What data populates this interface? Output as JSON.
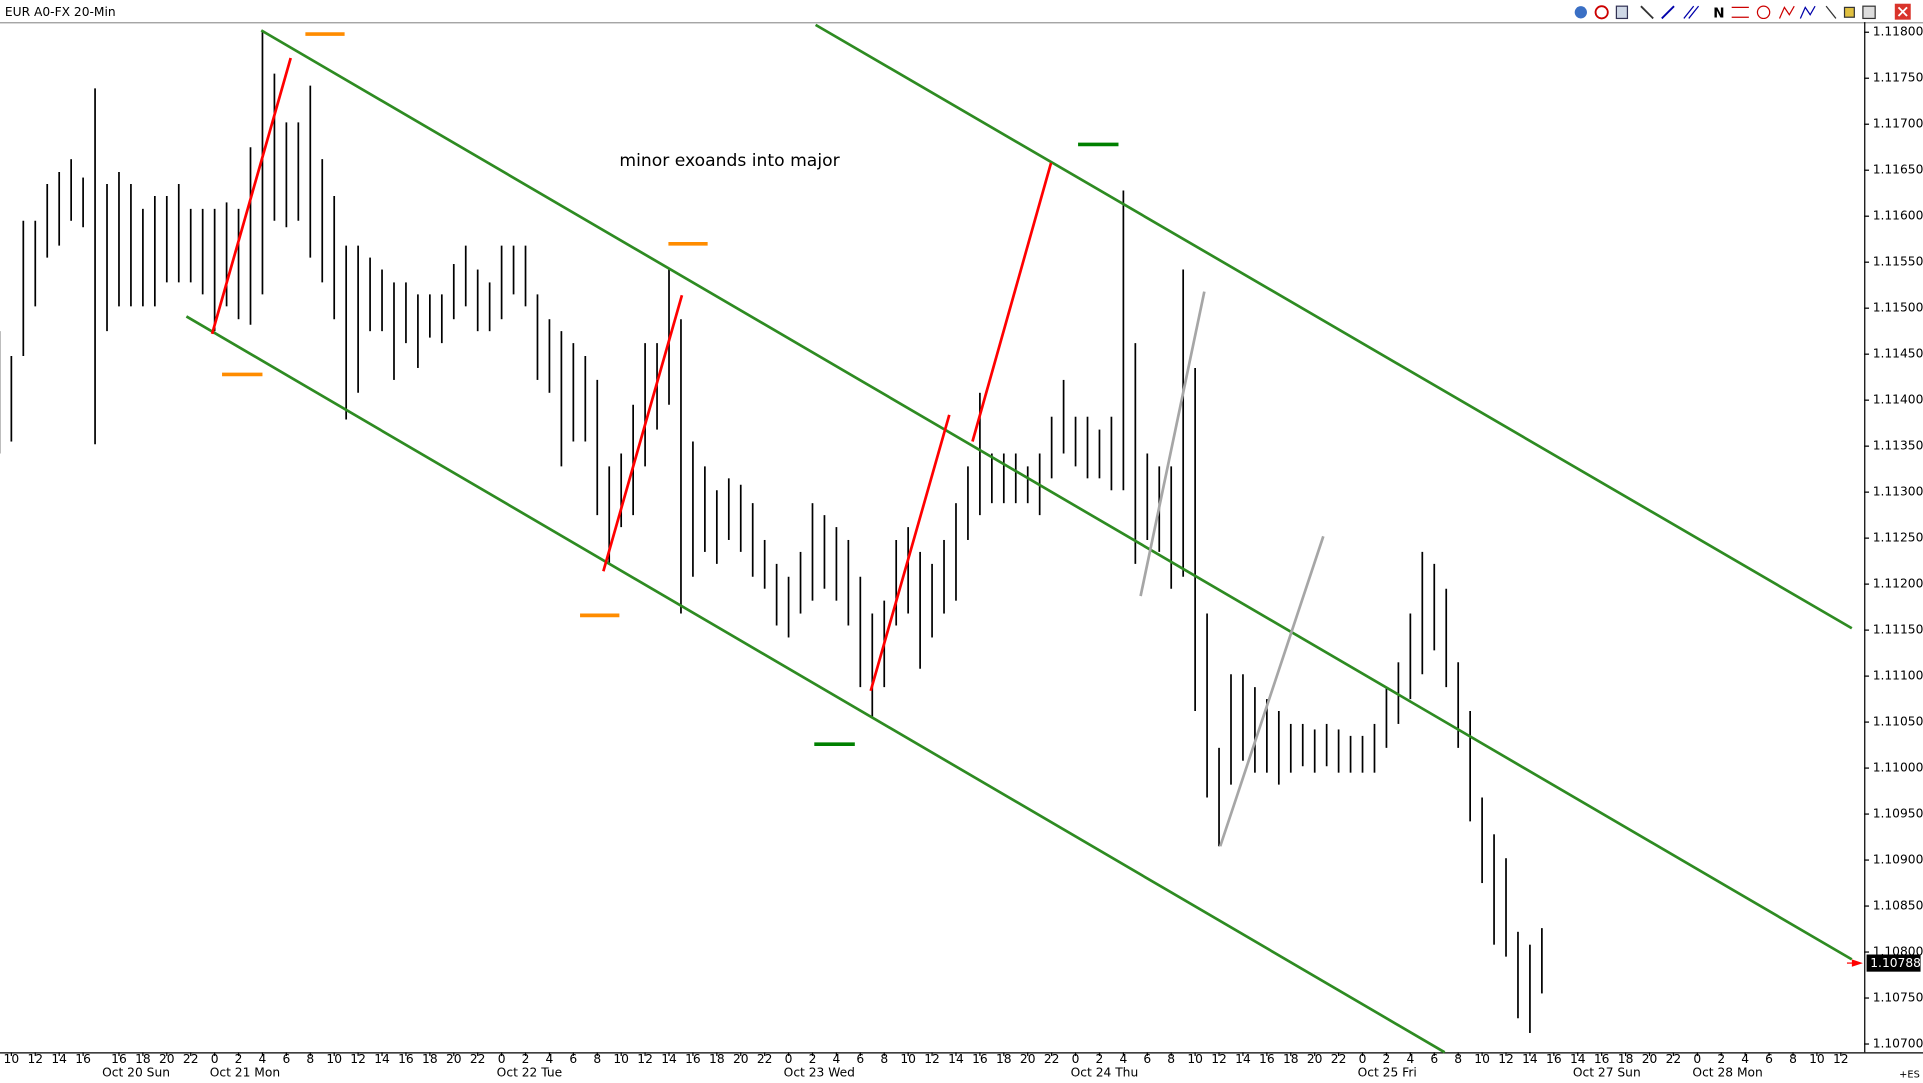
{
  "chart_data": {
    "type": "rangebar",
    "title": "EUR A0-FX 20-Min",
    "annotation": {
      "text": "minor exoands into major",
      "x": 57.85,
      "y": 1.1166
    },
    "color": "#000000",
    "xlim": [
      6.05,
      161.95
    ],
    "ylim": [
      1.10691,
      1.11811
    ],
    "x": [
      6,
      7,
      8,
      9,
      10,
      11,
      12,
      13,
      14,
      15,
      16,
      17,
      18,
      19,
      20,
      21,
      22,
      23,
      24,
      25,
      26,
      27,
      28,
      29,
      30,
      31,
      32,
      33,
      34,
      35,
      36,
      37,
      38,
      39,
      40,
      41,
      42,
      43,
      44,
      45,
      46,
      47,
      48,
      49,
      50,
      51,
      52,
      53,
      54,
      55,
      56,
      57,
      58,
      59,
      60,
      61,
      62,
      63,
      64,
      65,
      66,
      67,
      68,
      69,
      70,
      71,
      72,
      73,
      74,
      75,
      76,
      77,
      78,
      79,
      80,
      81,
      82,
      83,
      84,
      85,
      86,
      87,
      88,
      89,
      90,
      91,
      92,
      93,
      94,
      95,
      96,
      97,
      98,
      99,
      100,
      101,
      102,
      103,
      104,
      105,
      106,
      107,
      108,
      109,
      110,
      111,
      112,
      113,
      114,
      115,
      116,
      117,
      118,
      119,
      120,
      121,
      122,
      123,
      124,
      125,
      126,
      127,
      128,
      129,
      130,
      131,
      132,
      133,
      134,
      135
    ],
    "high": [
      1.11475,
      1.11448,
      1.11595,
      1.11595,
      1.11635,
      1.11648,
      1.11662,
      1.11642,
      1.11739,
      1.11635,
      1.11648,
      1.11635,
      1.11608,
      1.11622,
      1.11622,
      1.11635,
      1.11608,
      1.11608,
      1.11608,
      1.11615,
      1.11608,
      1.11675,
      1.11802,
      1.11755,
      1.11702,
      1.11702,
      1.11742,
      1.11662,
      1.11622,
      1.11568,
      1.11568,
      1.11555,
      1.11542,
      1.11528,
      1.11528,
      1.11515,
      1.11515,
      1.11515,
      1.11548,
      1.11568,
      1.11542,
      1.11528,
      1.11568,
      1.11568,
      1.11568,
      1.11515,
      1.11488,
      1.11475,
      1.11462,
      1.11448,
      1.11422,
      1.11328,
      1.11342,
      1.11395,
      1.11462,
      1.11462,
      1.11542,
      1.11488,
      1.11355,
      1.11328,
      1.11302,
      1.11315,
      1.11308,
      1.11288,
      1.11248,
      1.11222,
      1.11208,
      1.11235,
      1.11288,
      1.11275,
      1.11262,
      1.11248,
      1.11208,
      1.11168,
      1.11182,
      1.11248,
      1.11262,
      1.11235,
      1.11222,
      1.11248,
      1.11288,
      1.11328,
      1.11408,
      1.11342,
      1.11342,
      1.11342,
      1.11328,
      1.11342,
      1.11382,
      1.11422,
      1.11382,
      1.11382,
      1.11368,
      1.11382,
      1.11628,
      1.11462,
      1.11342,
      1.11328,
      1.11328,
      1.11542,
      1.11435,
      1.11168,
      1.11022,
      1.11102,
      1.11102,
      1.11088,
      1.11075,
      1.11062,
      1.11048,
      1.11048,
      1.11042,
      1.11048,
      1.11042,
      1.11035,
      1.11035,
      1.11048,
      1.11088,
      1.11115,
      1.11168,
      1.11235,
      1.11222,
      1.11195,
      1.11115,
      1.11062,
      1.10968,
      1.10928,
      1.10902,
      1.10822,
      1.10808,
      1.10826
    ],
    "low": [
      1.11342,
      1.11355,
      1.11448,
      1.11502,
      1.11555,
      1.11568,
      1.11595,
      1.11588,
      1.11352,
      1.11475,
      1.11502,
      1.11502,
      1.11502,
      1.11502,
      1.11528,
      1.11528,
      1.11528,
      1.11515,
      1.11475,
      1.11502,
      1.11488,
      1.11482,
      1.11515,
      1.11595,
      1.11588,
      1.11595,
      1.11555,
      1.11528,
      1.11488,
      1.11379,
      1.11408,
      1.11475,
      1.11475,
      1.11422,
      1.11462,
      1.11435,
      1.11468,
      1.11462,
      1.11488,
      1.11502,
      1.11475,
      1.11475,
      1.11488,
      1.11515,
      1.11502,
      1.11422,
      1.11408,
      1.11328,
      1.11355,
      1.11355,
      1.11275,
      1.11222,
      1.11262,
      1.11275,
      1.11328,
      1.11368,
      1.11395,
      1.11168,
      1.11208,
      1.11235,
      1.11222,
      1.11248,
      1.11235,
      1.11208,
      1.11195,
      1.11155,
      1.11142,
      1.11168,
      1.11182,
      1.11195,
      1.11182,
      1.11155,
      1.11088,
      1.11055,
      1.11088,
      1.11155,
      1.11168,
      1.11108,
      1.11142,
      1.11168,
      1.11182,
      1.11248,
      1.11275,
      1.11288,
      1.11288,
      1.11288,
      1.11288,
      1.11275,
      1.11315,
      1.11342,
      1.11328,
      1.11315,
      1.11315,
      1.11302,
      1.11302,
      1.11222,
      1.11248,
      1.11235,
      1.11195,
      1.11208,
      1.11062,
      1.10968,
      1.10915,
      1.10982,
      1.11008,
      1.10995,
      1.10995,
      1.10982,
      1.10995,
      1.11002,
      1.10995,
      1.11002,
      1.10995,
      1.10995,
      1.10995,
      1.10995,
      1.11022,
      1.11048,
      1.11075,
      1.11102,
      1.11128,
      1.11088,
      1.11022,
      1.10942,
      1.10875,
      1.10808,
      1.10795,
      1.10728,
      1.10712,
      1.10755
    ],
    "drawings": [
      {
        "color": "#2e8b22",
        "x": [
          21.64,
          126.87
        ],
        "y": [
          1.11491,
          1.10691
        ]
      },
      {
        "color": "#2e8b22",
        "x": [
          27.9,
          160.92
        ],
        "y": [
          1.11802,
          1.10792
        ]
      },
      {
        "color": "#2e8b22",
        "x": [
          74.26,
          160.92
        ],
        "y": [
          1.11808,
          1.11152
        ]
      },
      {
        "color": "#ff0000",
        "x": [
          23.79,
          30.36
        ],
        "y": [
          1.11472,
          1.11772
        ]
      },
      {
        "color": "#ff0000",
        "x": [
          56.51,
          63.08
        ],
        "y": [
          1.11214,
          1.11514
        ]
      },
      {
        "color": "#ff0000",
        "x": [
          78.87,
          85.44
        ],
        "y": [
          1.11084,
          1.11384
        ]
      },
      {
        "color": "#ff0000",
        "x": [
          87.38,
          93.95
        ],
        "y": [
          1.11355,
          1.11658
        ]
      },
      {
        "color": "#a6a6a6",
        "x": [
          101.44,
          106.77
        ],
        "y": [
          1.11187,
          1.11518
        ]
      },
      {
        "color": "#a6a6a6",
        "x": [
          108.1,
          116.72
        ],
        "y": [
          1.10915,
          1.11252
        ]
      },
      {
        "color": "#ff8c00",
        "x": [
          31.59,
          34.87
        ],
        "y": [
          1.11798,
          1.11798
        ]
      },
      {
        "color": "#ff8c00",
        "x": [
          24.62,
          28.0
        ],
        "y": [
          1.11428,
          1.11428
        ]
      },
      {
        "color": "#ff8c00",
        "x": [
          61.95,
          65.23
        ],
        "y": [
          1.1157,
          1.1157
        ]
      },
      {
        "color": "#ff8c00",
        "x": [
          54.56,
          57.85
        ],
        "y": [
          1.11166,
          1.11166
        ]
      },
      {
        "color": "#008000",
        "x": [
          96.21,
          99.59
        ],
        "y": [
          1.11678,
          1.11678
        ]
      },
      {
        "color": "#008000",
        "x": [
          74.15,
          77.54
        ],
        "y": [
          1.11026,
          1.11026
        ]
      }
    ],
    "last_price": {
      "value": 1.10788,
      "label": "1.10788"
    },
    "corner_label": "+ES",
    "yticks": [
      {
        "value": 1.107,
        "label": "1.10700"
      },
      {
        "value": 1.1075,
        "label": "1.10750"
      },
      {
        "value": 1.108,
        "label": "1.10800"
      },
      {
        "value": 1.1085,
        "label": "1.10850"
      },
      {
        "value": 1.109,
        "label": "1.10900"
      },
      {
        "value": 1.1095,
        "label": "1.10950"
      },
      {
        "value": 1.11,
        "label": "1.11000"
      },
      {
        "value": 1.1105,
        "label": "1.11050"
      },
      {
        "value": 1.111,
        "label": "1.11100"
      },
      {
        "value": 1.1115,
        "label": "1.11150"
      },
      {
        "value": 1.112,
        "label": "1.11200"
      },
      {
        "value": 1.1125,
        "label": "1.11250"
      },
      {
        "value": 1.113,
        "label": "1.11300"
      },
      {
        "value": 1.1135,
        "label": "1.11350"
      },
      {
        "value": 1.114,
        "label": "1.11400"
      },
      {
        "value": 1.1145,
        "label": "1.11450"
      },
      {
        "value": 1.115,
        "label": "1.11500"
      },
      {
        "value": 1.1155,
        "label": "1.11550"
      },
      {
        "value": 1.116,
        "label": "1.11600"
      },
      {
        "value": 1.1165,
        "label": "1.11650"
      },
      {
        "value": 1.117,
        "label": "1.11700"
      },
      {
        "value": 1.1175,
        "label": "1.11750"
      },
      {
        "value": 1.118,
        "label": "1.11800"
      }
    ],
    "xticks": [
      {
        "value": 7,
        "label": "10"
      },
      {
        "value": 9,
        "label": "12"
      },
      {
        "value": 11,
        "label": "14"
      },
      {
        "value": 13,
        "label": "16"
      },
      16,
      18,
      20,
      22,
      {
        "value": 24,
        "label": "0"
      },
      {
        "value": 26,
        "label": "2"
      },
      {
        "value": 28,
        "label": "4"
      },
      {
        "value": 30,
        "label": "6"
      },
      {
        "value": 32,
        "label": "8"
      },
      {
        "value": 34,
        "label": "10"
      },
      {
        "value": 36,
        "label": "12"
      },
      {
        "value": 38,
        "label": "14"
      },
      {
        "value": 40,
        "label": "16"
      },
      {
        "value": 42,
        "label": "18"
      },
      {
        "value": 44,
        "label": "20"
      },
      {
        "value": 46,
        "label": "22"
      },
      {
        "value": 48,
        "label": "0"
      },
      {
        "value": 50,
        "label": "2"
      },
      {
        "value": 52,
        "label": "4"
      },
      {
        "value": 54,
        "label": "6"
      },
      {
        "value": 56,
        "label": "8"
      },
      {
        "value": 58,
        "label": "10"
      },
      {
        "value": 60,
        "label": "12"
      },
      {
        "value": 62,
        "label": "14"
      },
      {
        "value": 64,
        "label": "16"
      },
      {
        "value": 66,
        "label": "18"
      },
      {
        "value": 68,
        "label": "20"
      },
      {
        "value": 70,
        "label": "22"
      },
      {
        "value": 72,
        "label": "0"
      },
      {
        "value": 74,
        "label": "2"
      },
      {
        "value": 76,
        "label": "4"
      },
      {
        "value": 78,
        "label": "6"
      },
      {
        "value": 80,
        "label": "8"
      },
      {
        "value": 82,
        "label": "10"
      },
      {
        "value": 84,
        "label": "12"
      },
      {
        "value": 86,
        "label": "14"
      },
      {
        "value": 88,
        "label": "16"
      },
      {
        "value": 90,
        "label": "18"
      },
      {
        "value": 92,
        "label": "20"
      },
      {
        "value": 94,
        "label": "22"
      },
      {
        "value": 96,
        "label": "0"
      },
      {
        "value": 98,
        "label": "2"
      },
      {
        "value": 100,
        "label": "4"
      },
      {
        "value": 102,
        "label": "6"
      },
      {
        "value": 104,
        "label": "8"
      },
      {
        "value": 106,
        "label": "10"
      },
      {
        "value": 108,
        "label": "12"
      },
      {
        "value": 110,
        "label": "14"
      },
      {
        "value": 112,
        "label": "16"
      },
      {
        "value": 114,
        "label": "18"
      },
      {
        "value": 116,
        "label": "20"
      },
      {
        "value": 118,
        "label": "22"
      },
      {
        "value": 120,
        "label": "0"
      },
      {
        "value": 122,
        "label": "2"
      },
      {
        "value": 124,
        "label": "4"
      },
      {
        "value": 126,
        "label": "6"
      },
      {
        "value": 128,
        "label": "8"
      },
      {
        "value": 130,
        "label": "10"
      },
      {
        "value": 132,
        "label": "12"
      },
      {
        "value": 134,
        "label": "14"
      },
      {
        "value": 136,
        "label": "16"
      },
      {
        "value": 138,
        "label": "14"
      },
      {
        "value": 140,
        "label": "16"
      },
      {
        "value": 142,
        "label": "18"
      },
      {
        "value": 144,
        "label": "20"
      },
      {
        "value": 146,
        "label": "22"
      },
      {
        "value": 148,
        "label": "0"
      },
      {
        "value": 150,
        "label": "2"
      },
      {
        "value": 152,
        "label": "4"
      },
      {
        "value": 154,
        "label": "6"
      },
      {
        "value": 156,
        "label": "8"
      },
      {
        "value": 158,
        "label": "10"
      },
      {
        "value": 160,
        "label": "12"
      }
    ],
    "day_labels": [
      {
        "value": 15,
        "label": "Oct 20 Sun"
      },
      {
        "value": 24,
        "label": "Oct 21 Mon"
      },
      {
        "value": 48,
        "label": "Oct 22 Tue"
      },
      {
        "value": 72,
        "label": "Oct 23 Wed"
      },
      {
        "value": 96,
        "label": "Oct 24 Thu"
      },
      {
        "value": 120,
        "label": "Oct 25 Fri"
      },
      {
        "value": 138,
        "label": "Oct 27 Sun"
      },
      {
        "value": 148,
        "label": "Oct 28 Mon"
      }
    ]
  }
}
